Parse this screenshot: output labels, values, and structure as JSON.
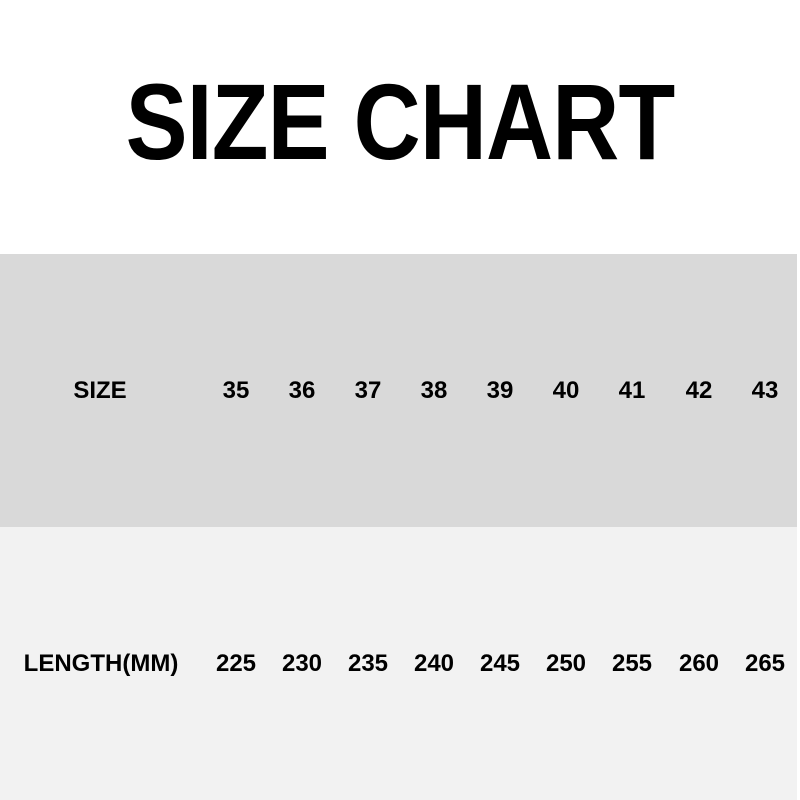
{
  "chart_data": {
    "type": "table",
    "title": "SIZE CHART",
    "rows": [
      {
        "label": "SIZE",
        "values": [
          "35",
          "36",
          "37",
          "38",
          "39",
          "40",
          "41",
          "42",
          "43"
        ],
        "background": "#d9d9d9"
      },
      {
        "label": "LENGTH(MM)",
        "values": [
          "225",
          "230",
          "235",
          "240",
          "245",
          "250",
          "255",
          "260",
          "265"
        ],
        "background": "#f2f2f2"
      }
    ]
  }
}
